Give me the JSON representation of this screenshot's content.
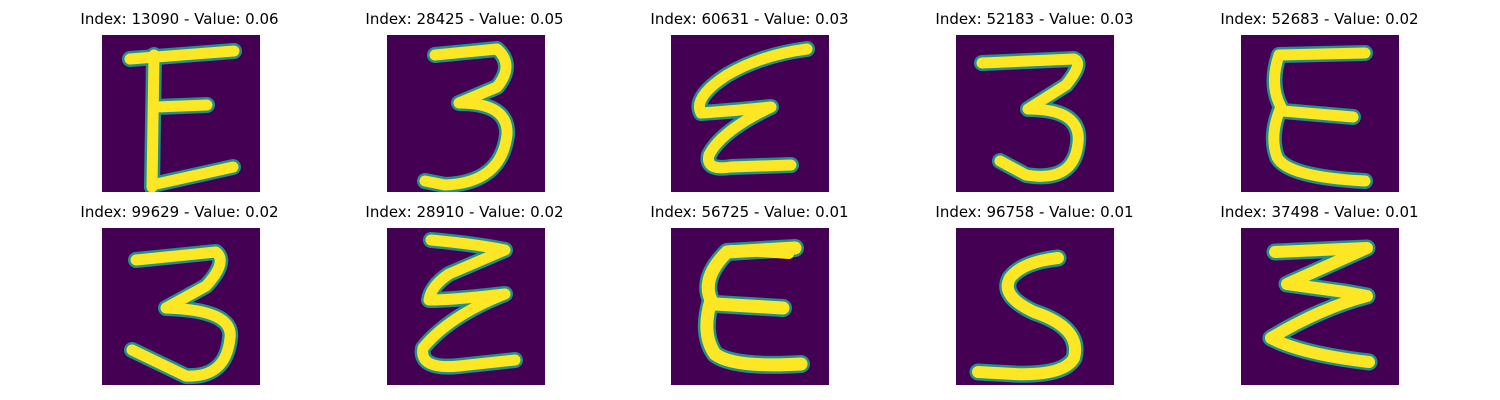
{
  "figure": {
    "panels": [
      {
        "title": "Index: 13090 - Value: 0.06",
        "glyph": "E"
      },
      {
        "title": "Index: 28425 - Value: 0.05",
        "glyph": "3"
      },
      {
        "title": "Index: 60631 - Value: 0.03",
        "glyph": "ε-slanted"
      },
      {
        "title": "Index: 52183 - Value: 0.03",
        "glyph": "3"
      },
      {
        "title": "Index: 52683 - Value: 0.02",
        "glyph": "E"
      },
      {
        "title": "Index: 99629 - Value: 0.02",
        "glyph": "3"
      },
      {
        "title": "Index: 28910 - Value: 0.02",
        "glyph": "ε-slanted"
      },
      {
        "title": "Index: 56725 - Value: 0.01",
        "glyph": "E"
      },
      {
        "title": "Index: 96758 - Value: 0.01",
        "glyph": "S"
      },
      {
        "title": "Index: 37498 - Value: 0.01",
        "glyph": "Z-like"
      }
    ],
    "colors": {
      "background": "#440154",
      "stroke": "#fde725",
      "edge": "#21918c"
    }
  }
}
